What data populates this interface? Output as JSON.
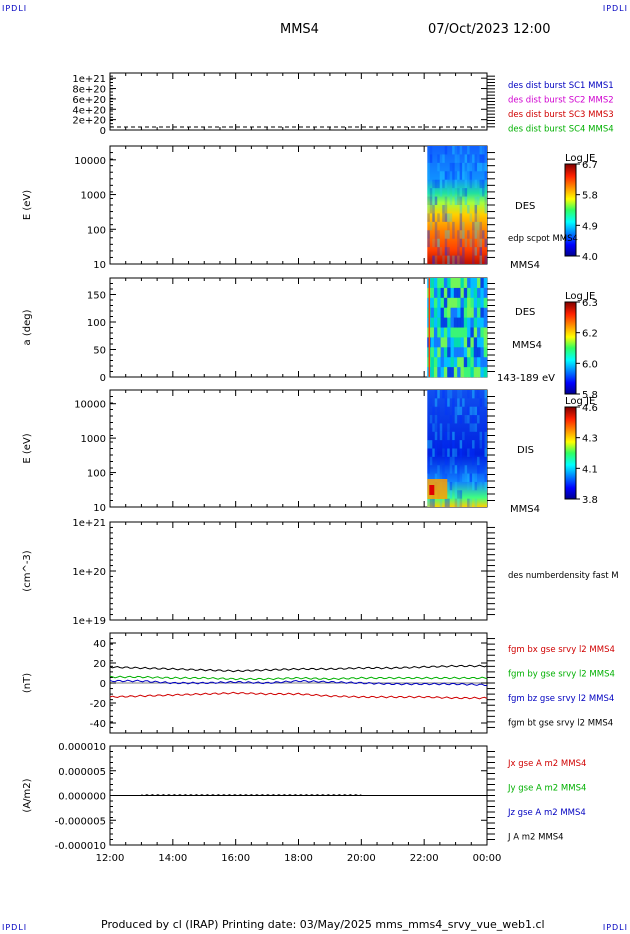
{
  "corner_label": "IPDLI",
  "header": {
    "spacecraft": "MMS4",
    "datetime": "07/Oct/2023 12:00"
  },
  "footer": "Produced by cl (IRAP)   Printing date: 03/May/2025   mms_mms4_srvy_vue_web1.cl",
  "colors": {
    "red": "#d00000",
    "green": "#00b000",
    "blue": "#0000c0",
    "magenta": "#d000d0",
    "black": "#000000"
  },
  "x_ticks": [
    "12:00",
    "14:00",
    "16:00",
    "18:00",
    "20:00",
    "22:00",
    "00:00"
  ],
  "chart_data": [
    {
      "type": "line",
      "title": "",
      "ylim": [
        0,
        1.1e+21
      ],
      "y_ticks": [
        "1e+21",
        "8e+20",
        "6e+20",
        "4e+20",
        "2e+20",
        "0"
      ],
      "y_tick_values": [
        1e+21,
        8e+20,
        6e+20,
        4e+20,
        2e+20,
        0
      ],
      "legend": [
        {
          "text": "des dist burst SC1 MMS1",
          "color": "blue"
        },
        {
          "text": "des dist burst SC2 MMS2",
          "color": "magenta"
        },
        {
          "text": "des dist burst SC3 MMS3",
          "color": "red"
        },
        {
          "text": "des dist burst SC4 MMS4",
          "color": "green"
        }
      ]
    },
    {
      "type": "heatmap",
      "ylabel": "E (eV)",
      "log_y": true,
      "ylim": [
        10,
        25000
      ],
      "y_ticks": [
        "10000",
        "1000",
        "100",
        "10"
      ],
      "right_labels": {
        "instrument": "DES",
        "extra": "edp scpot MMS4",
        "bottom": "MMS4"
      },
      "colorbar": {
        "title": "Log JE",
        "ticks": [
          "6.7",
          "5.8",
          "4.9",
          "4.0"
        ]
      }
    },
    {
      "type": "heatmap",
      "ylabel": "a (deg)",
      "ylim": [
        0,
        180
      ],
      "y_ticks": [
        "150",
        "100",
        "50",
        "0"
      ],
      "right_labels": {
        "instrument": "DES",
        "sc": "MMS4",
        "bottom": "143-189 eV"
      },
      "colorbar": {
        "title": "Log JE",
        "ticks": [
          "6.3",
          "6.2",
          "6.0",
          "5.8"
        ]
      }
    },
    {
      "type": "heatmap",
      "ylabel": "E (eV)",
      "log_y": true,
      "ylim": [
        10,
        25000
      ],
      "y_ticks": [
        "10000",
        "1000",
        "100",
        "10"
      ],
      "right_labels": {
        "instrument": "DIS",
        "bottom": "MMS4"
      },
      "colorbar": {
        "title": "Log JE",
        "ticks": [
          "4.6",
          "4.3",
          "4.1",
          "3.8"
        ]
      }
    },
    {
      "type": "line",
      "ylabel": "(cm^-3)",
      "log_y": true,
      "ylim": [
        1e+19,
        1e+21
      ],
      "y_ticks": [
        "1e+21",
        "1e+20",
        "1e+19"
      ],
      "legend": [
        {
          "text": "des numberdensity fast M",
          "color": "black"
        }
      ]
    },
    {
      "type": "line",
      "ylabel": "(nT)",
      "ylim": [
        -50,
        50
      ],
      "y_ticks": [
        "40",
        "20",
        "0",
        "-20",
        "-40"
      ],
      "x_hours": [
        12,
        13,
        14,
        15,
        16,
        17,
        18,
        19,
        20,
        21,
        22,
        23,
        24
      ],
      "series": [
        {
          "name": "fgm bx gse srvy l2 MMS4",
          "color": "red",
          "values": [
            -14,
            -13,
            -12,
            -11,
            -10,
            -11,
            -11,
            -13,
            -14,
            -14,
            -14,
            -15,
            -15
          ]
        },
        {
          "name": "fgm by gse srvy l2 MMS4",
          "color": "green",
          "values": [
            6,
            6,
            5,
            5,
            4,
            4,
            5,
            4,
            5,
            5,
            5,
            5,
            5
          ]
        },
        {
          "name": "fgm bz gse srvy l2 MMS4",
          "color": "blue",
          "values": [
            2,
            2,
            0,
            0,
            1,
            0,
            2,
            1,
            0,
            -1,
            -1,
            -1,
            -2
          ]
        },
        {
          "name": "fgm bt gse srvy l2 MMS4",
          "color": "black",
          "values": [
            16,
            15,
            14,
            13,
            12,
            13,
            14,
            14,
            15,
            15,
            16,
            17,
            17
          ]
        }
      ]
    },
    {
      "type": "line",
      "ylabel": "(A/m2)",
      "ylim": [
        -1e-05,
        1e-05
      ],
      "y_ticks": [
        "0.000010",
        "0.000005",
        "0.000000",
        "-0.000005",
        "-0.000010"
      ],
      "series": [
        {
          "name": "Jx gse A m2 MMS4",
          "color": "red"
        },
        {
          "name": "Jy gse A m2 MMS4",
          "color": "green"
        },
        {
          "name": "Jz gse A m2 MMS4",
          "color": "blue"
        },
        {
          "name": "J A m2 MMS4",
          "color": "black"
        }
      ],
      "note": "flat near zero from 13:00 to 20:00"
    }
  ]
}
